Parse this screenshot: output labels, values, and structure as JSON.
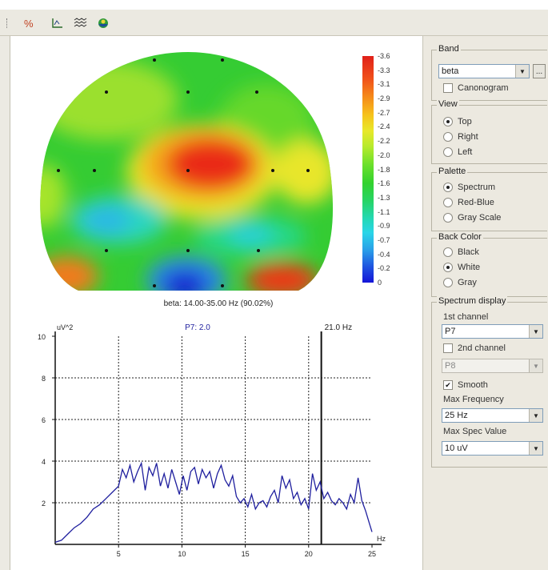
{
  "toolbar": {
    "icons": [
      "percent-icon",
      "axes-icon",
      "wave-icon",
      "head-icon"
    ]
  },
  "topomap": {
    "caption": "beta: 14.00-35.00 Hz (90.02%)",
    "colorbar_labels": [
      "-3.6",
      "-3.3",
      "-3.1",
      "-2.9",
      "-2.7",
      "-2.4",
      "-2.2",
      "-2.0",
      "-1.8",
      "-1.6",
      "-1.3",
      "-1.1",
      "-0.9",
      "-0.7",
      "-0.4",
      "-0.2",
      "0"
    ]
  },
  "spectrum": {
    "ylabel": "uV^2",
    "channel_label": "P7: 2.0",
    "marker_label": "21.0 Hz",
    "xunit": "Hz",
    "yticks": [
      "10",
      "8",
      "6",
      "4",
      "2"
    ],
    "xticks": [
      "5",
      "10",
      "15",
      "20",
      "25"
    ]
  },
  "chart_data": {
    "type": "line",
    "title": "P7: 2.0",
    "xlabel": "Hz",
    "ylabel": "uV^2",
    "xlim": [
      0,
      25
    ],
    "ylim": [
      0,
      10
    ],
    "grid": true,
    "marker_x": 21.0,
    "x": [
      0,
      0.5,
      1,
      1.5,
      2,
      2.5,
      3,
      3.5,
      4,
      4.5,
      5,
      5.3,
      5.6,
      5.9,
      6.2,
      6.5,
      6.8,
      7.1,
      7.4,
      7.7,
      8,
      8.3,
      8.6,
      8.9,
      9.2,
      9.5,
      9.8,
      10.1,
      10.4,
      10.7,
      11,
      11.3,
      11.6,
      11.9,
      12.2,
      12.5,
      12.8,
      13.1,
      13.4,
      13.7,
      14,
      14.3,
      14.6,
      14.9,
      15.2,
      15.5,
      15.8,
      16.1,
      16.4,
      16.7,
      17,
      17.3,
      17.6,
      17.9,
      18.2,
      18.5,
      18.8,
      19.1,
      19.4,
      19.7,
      20,
      20.3,
      20.6,
      20.9,
      21.2,
      21.5,
      21.8,
      22.1,
      22.4,
      22.7,
      23,
      23.3,
      23.6,
      23.9,
      24.2,
      24.5,
      24.8,
      25
    ],
    "y": [
      0.1,
      0.2,
      0.5,
      0.8,
      1.0,
      1.3,
      1.7,
      1.9,
      2.2,
      2.5,
      2.8,
      3.6,
      3.2,
      3.8,
      3.0,
      3.5,
      3.9,
      2.6,
      3.7,
      3.3,
      3.9,
      2.8,
      3.4,
      2.7,
      3.6,
      3.0,
      2.4,
      3.3,
      2.6,
      3.5,
      3.7,
      2.9,
      3.6,
      3.2,
      3.5,
      2.7,
      3.4,
      3.8,
      3.1,
      2.8,
      3.3,
      2.3,
      2.0,
      2.2,
      1.8,
      2.4,
      1.7,
      2.0,
      2.1,
      1.8,
      2.3,
      2.6,
      2.0,
      3.3,
      2.7,
      3.1,
      2.2,
      2.5,
      1.9,
      2.2,
      1.7,
      3.4,
      2.6,
      3.0,
      2.2,
      2.5,
      2.1,
      1.9,
      2.2,
      2.0,
      1.7,
      2.4,
      2.0,
      3.2,
      2.1,
      1.6,
      1.0,
      0.6
    ],
    "series": [
      {
        "name": "P7",
        "color": "#1f1f9e"
      }
    ]
  },
  "panel": {
    "band": {
      "title": "Band",
      "value": "beta",
      "ellipsis": "...",
      "canonogram_label": "Canonogram",
      "canonogram_checked": false
    },
    "view": {
      "title": "View",
      "options": [
        "Top",
        "Right",
        "Left"
      ],
      "selected": "Top"
    },
    "palette": {
      "title": "Palette",
      "options": [
        "Spectrum",
        "Red-Blue",
        "Gray Scale"
      ],
      "selected": "Spectrum"
    },
    "back_color": {
      "title": "Back Color",
      "options": [
        "Black",
        "White",
        "Gray"
      ],
      "selected": "White"
    },
    "spectrum_display": {
      "title": "Spectrum display",
      "first_channel_label": "1st channel",
      "first_channel": "P7",
      "second_channel_label": "2nd channel",
      "second_channel_checked": false,
      "second_channel": "P8",
      "smooth_label": "Smooth",
      "smooth_checked": true,
      "max_frequency_label": "Max Frequency",
      "max_frequency": "25 Hz",
      "max_spec_label": "Max Spec Value",
      "max_spec": "10 uV"
    }
  }
}
